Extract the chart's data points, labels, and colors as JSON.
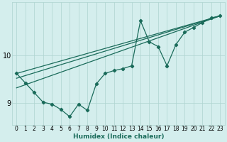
{
  "xlabel": "Humidex (Indice chaleur)",
  "background_color": "#d4eeed",
  "grid_color": "#aed4d0",
  "line_color": "#1a6b5a",
  "x": [
    0,
    1,
    2,
    3,
    4,
    5,
    6,
    7,
    8,
    9,
    10,
    11,
    12,
    13,
    14,
    15,
    16,
    17,
    18,
    19,
    20,
    21,
    22,
    23
  ],
  "y_jagged": [
    9.62,
    9.42,
    9.22,
    9.02,
    8.98,
    8.87,
    8.72,
    8.98,
    8.85,
    9.4,
    9.62,
    9.68,
    9.72,
    9.78,
    10.72,
    10.28,
    10.18,
    9.78,
    10.22,
    10.48,
    10.58,
    10.68,
    10.78,
    10.82
  ],
  "trend_lines": [
    {
      "x0": 0,
      "y0": 9.32,
      "x1": 23,
      "y1": 10.82
    },
    {
      "x0": 0,
      "y0": 9.52,
      "x1": 23,
      "y1": 10.82
    },
    {
      "x0": 0,
      "y0": 9.62,
      "x1": 23,
      "y1": 10.82
    }
  ],
  "ylim": [
    8.55,
    11.1
  ],
  "xlim": [
    -0.5,
    23.5
  ],
  "yticks": [
    9,
    10
  ],
  "xticks": [
    0,
    1,
    2,
    3,
    4,
    5,
    6,
    7,
    8,
    9,
    10,
    11,
    12,
    13,
    14,
    15,
    16,
    17,
    18,
    19,
    20,
    21,
    22,
    23
  ],
  "xlabel_fontsize": 6.5,
  "ytick_fontsize": 7.0,
  "xtick_fontsize": 5.5
}
